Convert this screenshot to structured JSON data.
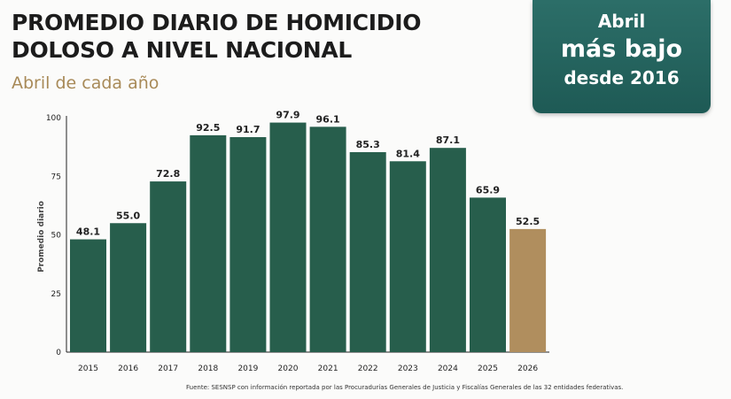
{
  "header": {
    "title_line1": "PROMEDIO DIARIO DE HOMICIDIO",
    "title_line2": "DOLOSO A NIVEL NACIONAL",
    "subtitle": "Abril de cada año"
  },
  "badge": {
    "line1": "Abril",
    "line2": "más bajo",
    "line3": "desde 2016"
  },
  "footer": {
    "source": "Fuente: SESNSP con información reportada por las Procuradurías Generales de Justicia y Fiscalías Generales de las 32 entidades federativas."
  },
  "colors": {
    "bar": "#275e4c",
    "highlight": "#b08e5e",
    "badge": "#246660"
  },
  "chart_data": {
    "type": "bar",
    "categories": [
      "2015",
      "2016",
      "2017",
      "2018",
      "2019",
      "2020",
      "2021",
      "2022",
      "2023",
      "2024",
      "2025",
      "2026"
    ],
    "values": [
      48.1,
      55.0,
      72.8,
      92.5,
      91.7,
      97.9,
      96.1,
      85.3,
      81.4,
      87.1,
      65.9,
      52.5
    ],
    "value_labels": [
      "48.1",
      "55.0",
      "72.8",
      "92.5",
      "91.7",
      "97.9",
      "96.1",
      "85.3",
      "81.4",
      "87.1",
      "65.9",
      "52.5"
    ],
    "highlight_index": 11,
    "ylabel": "Promedio diario",
    "xlabel": "",
    "ylim": [
      0,
      100
    ],
    "yticks": [
      0,
      25,
      50,
      75,
      100
    ],
    "grid": false,
    "legend": "none"
  }
}
